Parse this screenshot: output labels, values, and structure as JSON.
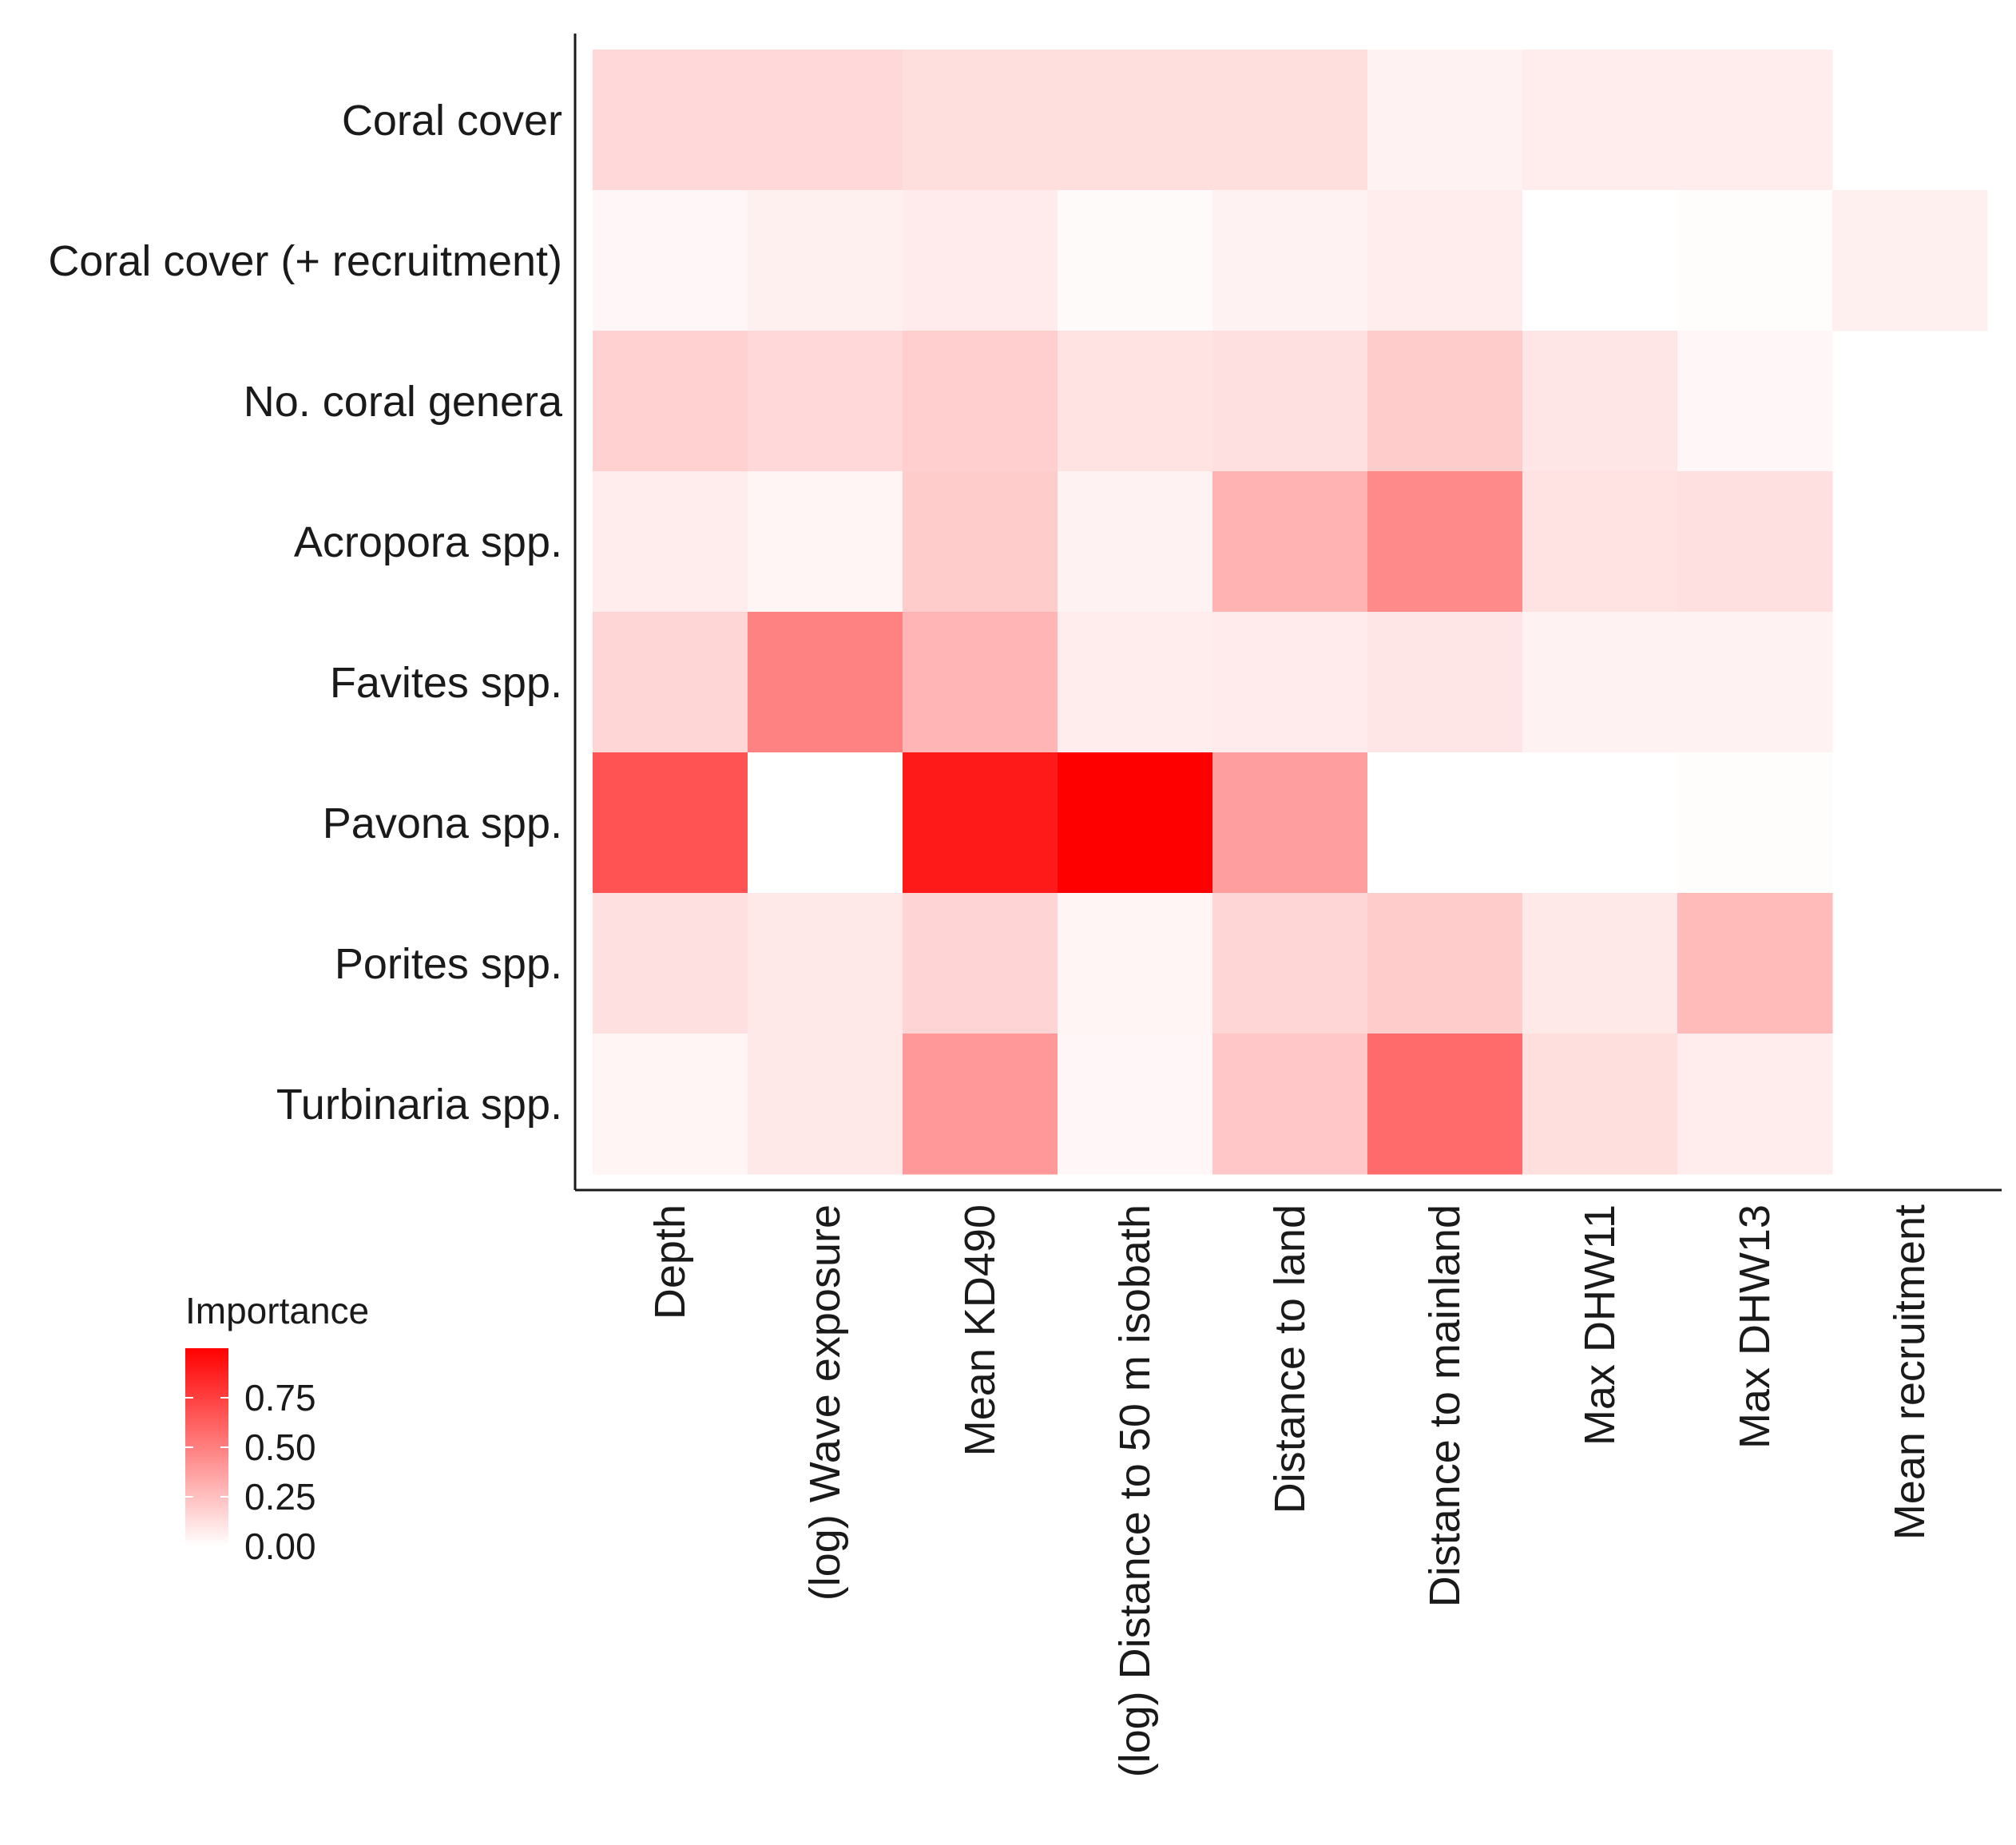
{
  "chart_data": {
    "type": "heatmap",
    "title": "",
    "xlabel": "",
    "ylabel": "",
    "x_categories": [
      "Depth",
      "(log) Wave exposure",
      "Mean KD490",
      "(log) Distance to 50 m isobath",
      "Distance to land",
      "Distance to mainland",
      "Max DHW11",
      "Max DHW13",
      "Mean recruitment"
    ],
    "y_categories": [
      "Coral cover",
      "Coral cover (+ recruitment)",
      "No. coral genera",
      "Acropora spp.",
      "Favites spp.",
      "Pavona spp.",
      "Porites spp.",
      "Turbinaria spp."
    ],
    "values": [
      [
        0.15,
        0.15,
        0.13,
        0.13,
        0.13,
        0.05,
        0.07,
        0.07,
        null
      ],
      [
        0.03,
        0.06,
        0.08,
        0.02,
        0.05,
        0.07,
        0.0,
        0.01,
        0.06
      ],
      [
        0.18,
        0.15,
        0.19,
        0.11,
        0.12,
        0.2,
        0.1,
        0.03,
        null
      ],
      [
        0.07,
        0.04,
        0.2,
        0.05,
        0.3,
        0.46,
        0.11,
        0.12,
        null
      ],
      [
        0.16,
        0.49,
        0.29,
        0.07,
        0.08,
        0.1,
        0.05,
        0.05,
        null
      ],
      [
        0.68,
        0.0,
        0.9,
        1.0,
        0.38,
        0.0,
        0.0,
        0.01,
        null
      ],
      [
        0.12,
        0.09,
        0.17,
        0.04,
        0.16,
        0.2,
        0.09,
        0.27,
        null
      ],
      [
        0.04,
        0.09,
        0.4,
        0.03,
        0.22,
        0.58,
        0.13,
        0.07,
        null
      ]
    ],
    "legend": {
      "title": "Importance",
      "ticks": [
        0.0,
        0.25,
        0.5,
        0.75
      ],
      "tick_labels": [
        "0.00",
        "0.25",
        "0.50",
        "0.75"
      ],
      "range": [
        0,
        1
      ],
      "color_low": "#ffffff",
      "color_high": "#ff0000",
      "placement": "bottom-left"
    },
    "grid": false
  }
}
